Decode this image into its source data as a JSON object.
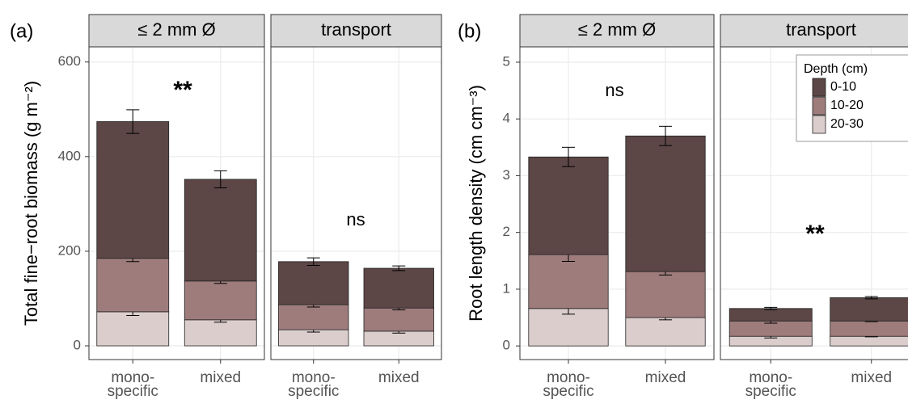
{
  "chart_data": [
    {
      "type": "bar",
      "stacked": true,
      "panel_label": "(a)",
      "y_label": "Total fine−root biomass (g m⁻²)",
      "ylim": [
        -29,
        632
      ],
      "yticks": [
        0,
        200,
        400,
        600
      ],
      "grid": true,
      "categories": [
        "mono-\nspecific",
        "mixed"
      ],
      "series": [
        {
          "color": "#5c4646"
        },
        {
          "color": "#9e7c7c"
        },
        {
          "color": "#dccdcd"
        }
      ],
      "facets": [
        {
          "title": "≤ 2 mm Ø",
          "annotation": "**",
          "series": [
            {
              "values": [
                289,
                215
              ],
              "errors": [
                25,
                18
              ]
            },
            {
              "values": [
                113,
                82
              ],
              "errors": [
                7,
                5
              ]
            },
            {
              "values": [
                72,
                55
              ],
              "errors": [
                8,
                5
              ]
            }
          ]
        },
        {
          "title": "transport",
          "annotation": "ns",
          "series": [
            {
              "values": [
                91,
                84
              ],
              "errors": [
                8,
                5
              ]
            },
            {
              "values": [
                53,
                49
              ],
              "errors": [
                5,
                4
              ]
            },
            {
              "values": [
                34,
                31
              ],
              "errors": [
                5,
                4
              ]
            }
          ]
        }
      ]
    },
    {
      "type": "bar",
      "stacked": true,
      "panel_label": "(b)",
      "y_label": "Root length density (cm cm⁻³)",
      "ylim": [
        -0.24,
        5.27
      ],
      "yticks": [
        0,
        1,
        2,
        3,
        4,
        5
      ],
      "grid": true,
      "categories": [
        "mono-\nspecific",
        "mixed"
      ],
      "legend": {
        "title": "Depth (cm)",
        "position": "top-right"
      },
      "series": [
        {
          "name": "0-10",
          "color": "#5c4646"
        },
        {
          "name": "10-20",
          "color": "#9e7c7c"
        },
        {
          "name": "20-30",
          "color": "#dccdcd"
        }
      ],
      "facets": [
        {
          "title": "≤ 2 mm Ø",
          "annotation": "ns",
          "series": [
            {
              "values": [
                1.72,
                2.39
              ],
              "errors": [
                0.17,
                0.17
              ]
            },
            {
              "values": [
                0.95,
                0.81
              ],
              "errors": [
                0.12,
                0.06
              ]
            },
            {
              "values": [
                0.66,
                0.5
              ],
              "errors": [
                0.1,
                0.04
              ]
            }
          ]
        },
        {
          "title": "transport",
          "annotation": "**",
          "series": [
            {
              "values": [
                0.22,
                0.41
              ],
              "errors": [
                0.02,
                0.02
              ]
            },
            {
              "values": [
                0.27,
                0.27
              ],
              "errors": [
                0.04,
                0.01
              ]
            },
            {
              "values": [
                0.17,
                0.17
              ],
              "errors": [
                0.03,
                0.01
              ]
            }
          ]
        }
      ]
    }
  ]
}
